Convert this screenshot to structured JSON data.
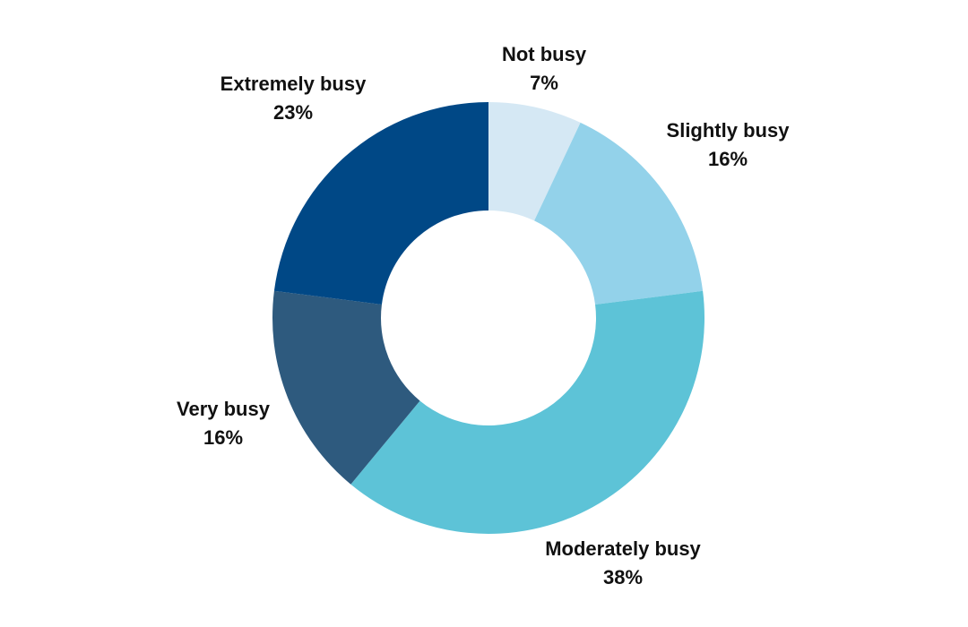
{
  "chart_data": {
    "type": "pie",
    "variant": "donut",
    "title": "",
    "categories": [
      "Not busy",
      "Slightly busy",
      "Moderately busy",
      "Very busy",
      "Extremely busy"
    ],
    "values": [
      7,
      16,
      38,
      16,
      23
    ],
    "value_labels": [
      "7%",
      "16%",
      "38%",
      "16%",
      "23%"
    ],
    "colors": [
      "#d5e8f4",
      "#93d2ea",
      "#5dc3d7",
      "#2e5a7e",
      "#004886"
    ],
    "legend": "none",
    "start": "top",
    "direction": "clockwise"
  }
}
